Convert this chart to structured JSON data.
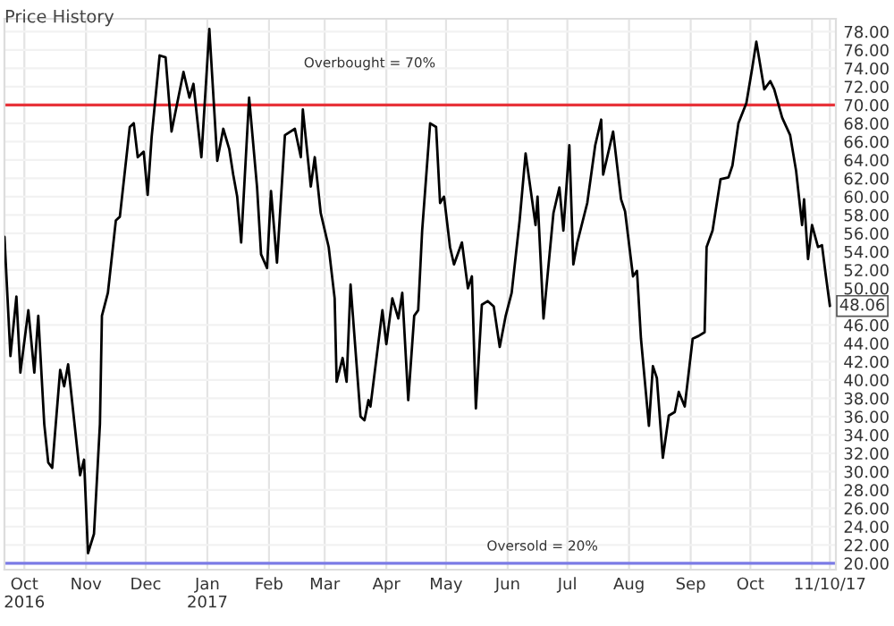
{
  "chart_data": {
    "type": "line",
    "annotations": [
      "Price History",
      {
        "text": "48.06",
        "x": "2017-11-10",
        "y": 48.06
      }
    ],
    "x": [
      "2016-09-21",
      "2016-09-24",
      "2016-09-27",
      "2016-09-29",
      "2016-10-03",
      "2016-10-06",
      "2016-10-08",
      "2016-10-11",
      "2016-10-13",
      "2016-10-15",
      "2016-10-19",
      "2016-10-21",
      "2016-10-23",
      "2016-10-29",
      "2016-10-31",
      "2016-11-02",
      "2016-11-05",
      "2016-11-08",
      "2016-11-09",
      "2016-11-12",
      "2016-11-16",
      "2016-11-18",
      "2016-11-23",
      "2016-11-25",
      "2016-11-27",
      "2016-11-30",
      "2016-12-02",
      "2016-12-04",
      "2016-12-08",
      "2016-12-11",
      "2016-12-14",
      "2016-12-20",
      "2016-12-23",
      "2016-12-25",
      "2016-12-29",
      "2017-01-02",
      "2017-01-06",
      "2017-01-09",
      "2017-01-12",
      "2017-01-14",
      "2017-01-16",
      "2017-01-18",
      "2017-01-22",
      "2017-01-26",
      "2017-01-28",
      "2017-01-31",
      "2017-02-02",
      "2017-02-05",
      "2017-02-09",
      "2017-02-14",
      "2017-02-17",
      "2017-02-18",
      "2017-02-22",
      "2017-02-24",
      "2017-02-27",
      "2017-03-03",
      "2017-03-06",
      "2017-03-07",
      "2017-03-10",
      "2017-03-12",
      "2017-03-14",
      "2017-03-19",
      "2017-03-21",
      "2017-03-23",
      "2017-03-24",
      "2017-03-30",
      "2017-04-01",
      "2017-04-04",
      "2017-04-07",
      "2017-04-09",
      "2017-04-12",
      "2017-04-15",
      "2017-04-17",
      "2017-04-19",
      "2017-04-23",
      "2017-04-26",
      "2017-04-28",
      "2017-04-30",
      "2017-05-03",
      "2017-05-05",
      "2017-05-09",
      "2017-05-12",
      "2017-05-14",
      "2017-05-16",
      "2017-05-19",
      "2017-05-22",
      "2017-05-25",
      "2017-05-28",
      "2017-05-31",
      "2017-06-03",
      "2017-06-07",
      "2017-06-10",
      "2017-06-15",
      "2017-06-16",
      "2017-06-19",
      "2017-06-24",
      "2017-06-27",
      "2017-06-29",
      "2017-07-02",
      "2017-07-04",
      "2017-07-06",
      "2017-07-11",
      "2017-07-15",
      "2017-07-18",
      "2017-07-19",
      "2017-07-24",
      "2017-07-28",
      "2017-07-30",
      "2017-08-03",
      "2017-08-05",
      "2017-08-07",
      "2017-08-11",
      "2017-08-13",
      "2017-08-15",
      "2017-08-18",
      "2017-08-21",
      "2017-08-24",
      "2017-08-26",
      "2017-08-29",
      "2017-09-02",
      "2017-09-05",
      "2017-09-08",
      "2017-09-09",
      "2017-09-12",
      "2017-09-16",
      "2017-09-20",
      "2017-09-22",
      "2017-09-25",
      "2017-09-29",
      "2017-10-02",
      "2017-10-04",
      "2017-10-08",
      "2017-10-11",
      "2017-10-13",
      "2017-10-17",
      "2017-10-21",
      "2017-10-24",
      "2017-10-27",
      "2017-10-28",
      "2017-10-30",
      "2017-11-01",
      "2017-11-04",
      "2017-11-06",
      "2017-11-08",
      "2017-11-10"
    ],
    "series": [
      {
        "color": "#000000",
        "values": [
          55.6,
          42.6,
          49.1,
          40.8,
          47.6,
          40.8,
          47.0,
          35.2,
          31.0,
          30.4,
          41.1,
          39.3,
          41.7,
          29.6,
          31.3,
          21.1,
          23.2,
          35.2,
          47.0,
          49.5,
          57.4,
          57.8,
          67.6,
          68.0,
          64.3,
          64.9,
          60.2,
          66.5,
          75.4,
          75.2,
          67.1,
          73.6,
          70.8,
          72.3,
          64.3,
          78.3,
          63.9,
          67.4,
          65.2,
          62.4,
          60.0,
          55.0,
          70.8,
          61.0,
          53.7,
          52.2,
          60.6,
          52.8,
          66.7,
          67.4,
          64.3,
          69.5,
          61.1,
          64.3,
          58.2,
          54.5,
          48.9,
          39.8,
          42.4,
          39.8,
          50.4,
          36.0,
          35.6,
          37.8,
          37.1,
          47.6,
          43.9,
          48.9,
          46.7,
          49.5,
          37.8,
          47.0,
          47.6,
          56.3,
          68.0,
          67.6,
          59.3,
          60.0,
          54.5,
          52.6,
          55.0,
          50.0,
          51.3,
          36.9,
          48.2,
          48.6,
          48.0,
          43.6,
          47.0,
          49.5,
          57.4,
          64.7,
          56.9,
          60.0,
          46.7,
          58.2,
          61.0,
          56.3,
          65.6,
          52.6,
          55.0,
          59.3,
          65.6,
          68.4,
          62.4,
          67.1,
          59.7,
          58.4,
          51.3,
          51.9,
          44.5,
          35.0,
          41.5,
          40.2,
          31.5,
          36.1,
          36.5,
          38.7,
          37.1,
          44.5,
          44.8,
          45.2,
          54.5,
          56.3,
          61.9,
          62.1,
          63.4,
          68.0,
          70.2,
          74.1,
          76.9,
          71.7,
          72.6,
          71.7,
          68.6,
          66.7,
          62.8,
          56.9,
          59.7,
          53.2,
          56.9,
          54.5,
          54.7,
          51.3,
          48.06
        ]
      }
    ],
    "xlim": [
      "2016-09-21",
      "2017-11-13"
    ],
    "xticks": [
      {
        "value": "2016-10-01",
        "label": "Oct\n2016"
      },
      {
        "value": "2016-11-01",
        "label": "Nov"
      },
      {
        "value": "2016-12-01",
        "label": "Dec"
      },
      {
        "value": "2017-01-01",
        "label": "Jan\n2017"
      },
      {
        "value": "2017-02-01",
        "label": "Feb"
      },
      {
        "value": "2017-03-01",
        "label": "Mar"
      },
      {
        "value": "2017-04-01",
        "label": "Apr"
      },
      {
        "value": "2017-05-01",
        "label": "May"
      },
      {
        "value": "2017-06-01",
        "label": "Jun"
      },
      {
        "value": "2017-07-01",
        "label": "Jul"
      },
      {
        "value": "2017-08-01",
        "label": "Aug"
      },
      {
        "value": "2017-09-01",
        "label": "Sep"
      },
      {
        "value": "2017-10-01",
        "label": "Oct"
      },
      {
        "value": "2017-11-01",
        "label": null
      },
      {
        "value": "2017-11-10",
        "label": "11/10/17"
      }
    ],
    "ylim": [
      19.3,
      79.4
    ],
    "yticks": [
      {
        "value": 20,
        "label": "20.00"
      },
      {
        "value": 22,
        "label": "22.00"
      },
      {
        "value": 24,
        "label": "24.00"
      },
      {
        "value": 26,
        "label": "26.00"
      },
      {
        "value": 28,
        "label": "28.00"
      },
      {
        "value": 30,
        "label": "30.00"
      },
      {
        "value": 32,
        "label": "32.00"
      },
      {
        "value": 34,
        "label": "34.00"
      },
      {
        "value": 36,
        "label": "36.00"
      },
      {
        "value": 38,
        "label": "38.00"
      },
      {
        "value": 40,
        "label": "40.00"
      },
      {
        "value": 42,
        "label": "42.00"
      },
      {
        "value": 44,
        "label": "44.00"
      },
      {
        "value": 46,
        "label": "46.00"
      },
      {
        "value": 50,
        "label": "50.00"
      },
      {
        "value": 52,
        "label": "52.00"
      },
      {
        "value": 54,
        "label": "54.00"
      },
      {
        "value": 56,
        "label": "56.00"
      },
      {
        "value": 58,
        "label": "58.00"
      },
      {
        "value": 60,
        "label": "60.00"
      },
      {
        "value": 62,
        "label": "62.00"
      },
      {
        "value": 64,
        "label": "64.00"
      },
      {
        "value": 66,
        "label": "66.00"
      },
      {
        "value": 68,
        "label": "68.00"
      },
      {
        "value": 70,
        "label": "70.00"
      },
      {
        "value": 72,
        "label": "72.00"
      },
      {
        "value": 74,
        "label": "74.00"
      },
      {
        "value": 76,
        "label": "76.00"
      },
      {
        "value": 78,
        "label": "78.00"
      }
    ],
    "ref_lines": [
      {
        "axis": "y",
        "value": 70,
        "label": "Overbought = 70%",
        "color": "#e8333a"
      },
      {
        "axis": "y",
        "value": 20,
        "label": "Oversold = 20%",
        "color": "#7b7be6"
      }
    ],
    "grid": true,
    "legend": false,
    "marker": "none",
    "line_style": "solid"
  }
}
